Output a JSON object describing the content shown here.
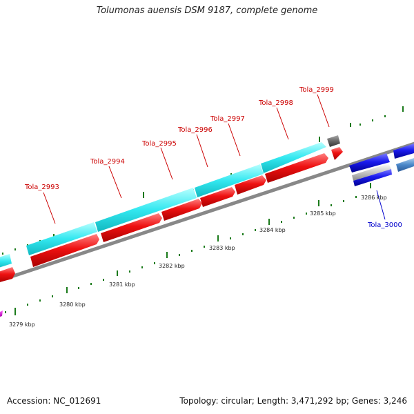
{
  "title": "Tolumonas auensis DSM 9187, complete genome",
  "footer": {
    "accession": "Accession: NC_012691",
    "summary": "Topology: circular; Length: 3,471,292 bp; Genes: 3,246"
  },
  "colors": {
    "gene_label_red": "#cc0000",
    "gene_label_blue": "#0000cc",
    "tick_green": "#1a7a1a",
    "backbone": "#888888",
    "cyan_feature": "#33e8f0",
    "red_feature": "#ee1111",
    "blue_feature": "#1a1aee",
    "steelblue_feature": "#4a86c8"
  },
  "gene_labels": [
    {
      "text": "Tola_2993",
      "color": "red"
    },
    {
      "text": "Tola_2994",
      "color": "red"
    },
    {
      "text": "Tola_2995",
      "color": "red"
    },
    {
      "text": "Tola_2996",
      "color": "red"
    },
    {
      "text": "Tola_2997",
      "color": "red"
    },
    {
      "text": "Tola_2998",
      "color": "red"
    },
    {
      "text": "Tola_2999",
      "color": "red"
    },
    {
      "text": "Tola_3000",
      "color": "blue"
    }
  ],
  "scale_labels": [
    "3279 kbp",
    "3280 kbp",
    "3281 kbp",
    "3282 kbp",
    "3283 kbp",
    "3284 kbp",
    "3285 kbp",
    "3286 kbp"
  ]
}
